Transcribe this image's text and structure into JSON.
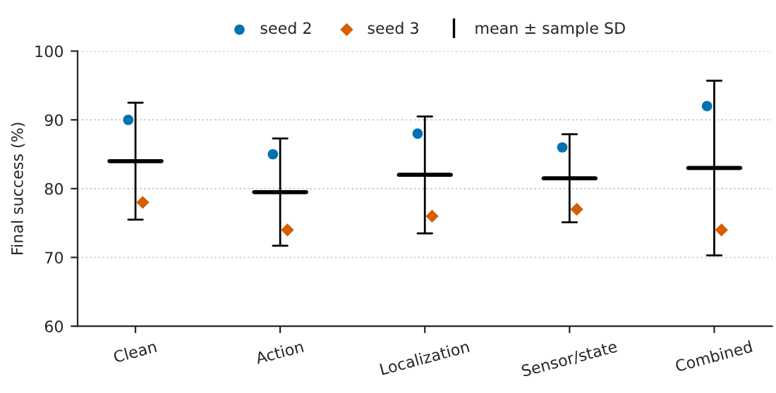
{
  "chart_data": {
    "type": "scatter",
    "ylabel": "Final success (%)",
    "categories": [
      "Clean",
      "Action",
      "Localization",
      "Sensor/state",
      "Combined"
    ],
    "series": [
      {
        "name": "seed 2",
        "color": "#0072b2",
        "marker": "circle",
        "values": [
          90,
          85,
          88,
          86,
          92
        ]
      },
      {
        "name": "seed 3",
        "color": "#d55e00",
        "marker": "diamond",
        "values": [
          78,
          74,
          76,
          77,
          74
        ]
      },
      {
        "name": "mean ± sample SD",
        "type": "box",
        "color": "#000000",
        "boxes": [
          {
            "low": 75.5,
            "q1": 84,
            "median": 84,
            "q3": 84,
            "high": 92.5
          },
          {
            "low": 71.7,
            "q1": 79.5,
            "median": 79.5,
            "q3": 79.5,
            "high": 87.3
          },
          {
            "low": 73.5,
            "q1": 82,
            "median": 82,
            "q3": 82,
            "high": 90.5
          },
          {
            "low": 75.1,
            "q1": 81.5,
            "median": 81.5,
            "q3": 81.5,
            "high": 87.9
          },
          {
            "low": 70.3,
            "q1": 83,
            "median": 83,
            "q3": 83,
            "high": 95.7
          }
        ]
      }
    ],
    "ylim": [
      60,
      100
    ],
    "yticks": [
      60,
      70,
      80,
      90,
      100
    ],
    "grid": "y",
    "legend": "top"
  }
}
